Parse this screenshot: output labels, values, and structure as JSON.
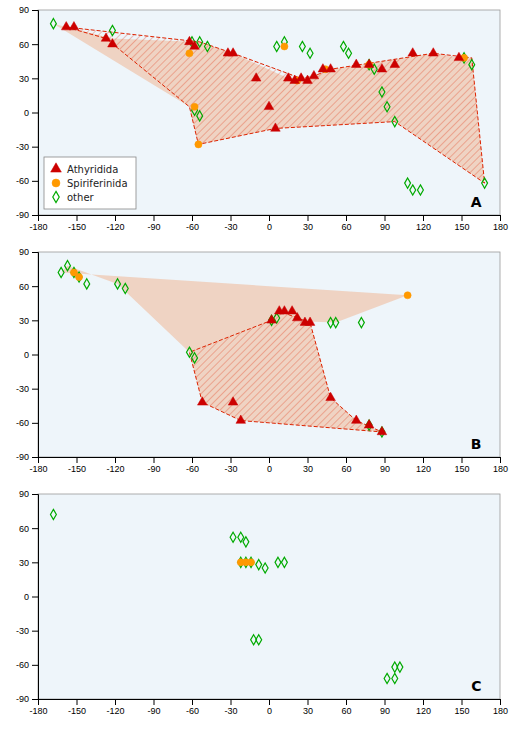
{
  "chart_data": [
    {
      "type": "scatter",
      "title": "A",
      "xlim": [
        -180,
        180
      ],
      "ylim": [
        -90,
        90
      ],
      "xticks": [
        -180,
        -150,
        -120,
        -90,
        -60,
        -30,
        0,
        30,
        60,
        90,
        120,
        150,
        180
      ],
      "yticks": [
        -90,
        -60,
        -30,
        0,
        30,
        60,
        90
      ],
      "legend": "lower left",
      "series": [
        {
          "name": "Athyridida",
          "color": "#cc0000",
          "marker": "triangle",
          "x": [
            -158,
            -152,
            -127,
            -122,
            -62,
            -58,
            -32,
            -28,
            -10,
            0,
            5,
            15,
            20,
            25,
            30,
            35,
            42,
            48,
            68,
            78,
            88,
            98,
            112,
            128,
            148
          ],
          "values": [
            75,
            75,
            65,
            60,
            62,
            58,
            52,
            52,
            30,
            5,
            -14,
            30,
            28,
            30,
            28,
            32,
            38,
            38,
            42,
            42,
            38,
            42,
            52,
            52,
            48
          ]
        },
        {
          "name": "Spiriferinida",
          "color": "#ff9900",
          "marker": "circle",
          "x": [
            -62,
            -58,
            -55,
            12,
            22,
            44,
            78,
            152
          ],
          "values": [
            52,
            5,
            -28,
            58,
            28,
            38,
            42,
            48
          ]
        },
        {
          "name": "other",
          "color": "#00aa00",
          "marker": "diamond",
          "x": [
            -168,
            -122,
            -60,
            -54,
            -48,
            -58,
            -54,
            6,
            12,
            26,
            32,
            58,
            62,
            78,
            82,
            88,
            92,
            98,
            108,
            112,
            118,
            152,
            158,
            168
          ],
          "values": [
            78,
            72,
            62,
            62,
            58,
            2,
            -3,
            58,
            62,
            58,
            52,
            58,
            52,
            42,
            38,
            18,
            5,
            -8,
            -62,
            -68,
            -68,
            48,
            42,
            -62
          ]
        }
      ],
      "hulls": [
        {
          "type": "area",
          "color": "#f0a070",
          "x": [
            -158,
            -168,
            -62,
            -55,
            5,
            98,
            168,
            158,
            148,
            128,
            48,
            35,
            25,
            15,
            -28,
            -54,
            -122
          ],
          "values": [
            75,
            78,
            5,
            -28,
            -14,
            -8,
            -62,
            48,
            48,
            52,
            38,
            32,
            30,
            30,
            52,
            62,
            65
          ]
        },
        {
          "type": "hatch",
          "color": "#dd2200",
          "x": [
            -158,
            -127,
            -62,
            -55,
            5,
            98,
            168,
            158,
            128,
            48,
            35,
            25,
            -28,
            -54
          ],
          "values": [
            75,
            65,
            5,
            -28,
            -14,
            -8,
            -62,
            48,
            52,
            38,
            32,
            30,
            52,
            62
          ]
        }
      ]
    },
    {
      "type": "scatter",
      "title": "B",
      "xlim": [
        -180,
        180
      ],
      "ylim": [
        -90,
        90
      ],
      "xticks": [
        -180,
        -150,
        -120,
        -90,
        -60,
        -30,
        0,
        30,
        60,
        90,
        120,
        150,
        180
      ],
      "yticks": [
        -90,
        -60,
        -30,
        0,
        30,
        60,
        90
      ],
      "legend": false,
      "series": [
        {
          "name": "Athyridida",
          "color": "#cc0000",
          "marker": "triangle",
          "x": [
            -52,
            -28,
            -22,
            2,
            8,
            12,
            18,
            22,
            28,
            32,
            48,
            68,
            78,
            88
          ],
          "values": [
            -42,
            -42,
            -58,
            30,
            38,
            38,
            38,
            32,
            28,
            28,
            -38,
            -58,
            -62,
            -68
          ]
        },
        {
          "name": "Spiriferinida",
          "color": "#ff9900",
          "marker": "circle",
          "x": [
            -152,
            -148,
            108
          ],
          "values": [
            72,
            68,
            52
          ]
        },
        {
          "name": "other",
          "color": "#00aa00",
          "marker": "diamond",
          "x": [
            -162,
            -157,
            -152,
            -148,
            -142,
            -118,
            -112,
            -62,
            -58,
            2,
            6,
            48,
            52,
            72,
            78,
            88
          ],
          "values": [
            72,
            78,
            72,
            68,
            62,
            62,
            58,
            2,
            -3,
            30,
            32,
            28,
            28,
            28,
            -62,
            -68
          ]
        }
      ],
      "hulls": [
        {
          "type": "area",
          "color": "#f0a070",
          "x": [
            -162,
            -157,
            -118,
            -62,
            -52,
            -22,
            88,
            68,
            48,
            32,
            22,
            8,
            2,
            52,
            108
          ],
          "values": [
            72,
            78,
            62,
            2,
            -42,
            -58,
            -68,
            -58,
            -38,
            28,
            32,
            38,
            30,
            28,
            52
          ]
        },
        {
          "type": "hatch",
          "color": "#dd2200",
          "x": [
            -22,
            -52,
            -62,
            2,
            8,
            32,
            48,
            68,
            88
          ],
          "values": [
            -58,
            -42,
            2,
            30,
            38,
            28,
            -38,
            -58,
            -68
          ]
        }
      ]
    },
    {
      "type": "scatter",
      "title": "C",
      "xlim": [
        -180,
        180
      ],
      "ylim": [
        -90,
        90
      ],
      "xticks": [
        -180,
        -150,
        -120,
        -90,
        -60,
        -30,
        0,
        30,
        60,
        90,
        120,
        150,
        180
      ],
      "yticks": [
        -90,
        -60,
        -30,
        0,
        30,
        60,
        90
      ],
      "legend": false,
      "series": [
        {
          "name": "Spiriferinida",
          "color": "#ff9900",
          "marker": "circle",
          "x": [
            -22,
            -18,
            -14
          ],
          "values": [
            30,
            30,
            30
          ]
        },
        {
          "name": "other",
          "color": "#00aa00",
          "marker": "diamond",
          "x": [
            -168,
            -28,
            -22,
            -18,
            -22,
            -18,
            -14,
            -8,
            -3,
            7,
            12,
            -12,
            -8,
            98,
            102,
            92,
            98
          ],
          "values": [
            72,
            52,
            52,
            48,
            30,
            30,
            30,
            28,
            25,
            30,
            30,
            -38,
            -38,
            -62,
            -62,
            -72,
            -72
          ]
        }
      ]
    }
  ]
}
